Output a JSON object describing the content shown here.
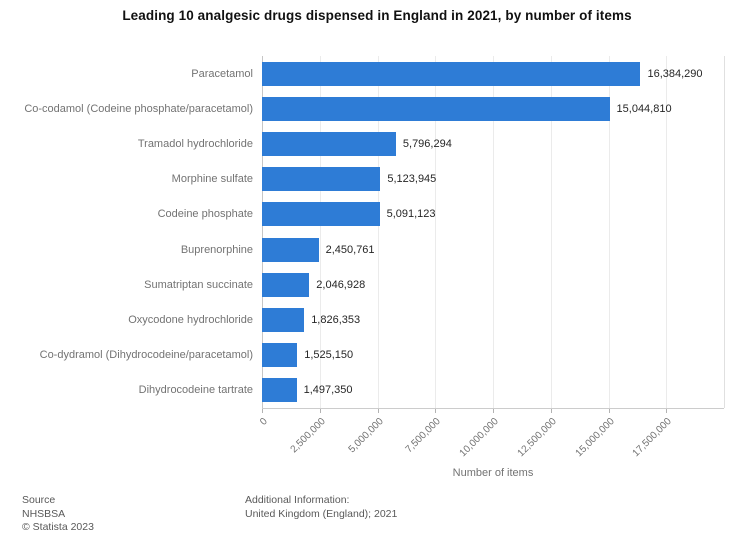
{
  "chart_data": {
    "type": "bar",
    "orientation": "horizontal",
    "title": "Leading 10 analgesic drugs dispensed in England in 2021, by number of items",
    "categories": [
      "Paracetamol",
      "Co-codamol (Codeine phosphate/paracetamol)",
      "Tramadol hydrochloride",
      "Morphine sulfate",
      "Codeine phosphate",
      "Buprenorphine",
      "Sumatriptan succinate",
      "Oxycodone hydrochloride",
      "Co-dydramol (Dihydrocodeine/paracetamol)",
      "Dihydrocodeine tartrate"
    ],
    "values": [
      16384290,
      15044810,
      5796294,
      5123945,
      5091123,
      2450761,
      2046928,
      1826353,
      1525150,
      1497350
    ],
    "value_labels": [
      "16,384,290",
      "15,044,810",
      "5,796,294",
      "5,123,945",
      "5,091,123",
      "2,450,761",
      "2,046,928",
      "1,826,353",
      "1,525,150",
      "1,497,350"
    ],
    "xlabel": "Number of items",
    "xlim": [
      0,
      20000000
    ],
    "ticks": [
      0,
      2500000,
      5000000,
      7500000,
      10000000,
      12500000,
      15000000,
      17500000
    ],
    "tick_labels": [
      "0",
      "2,500,000",
      "5,000,000",
      "7,500,000",
      "10,000,000",
      "12,500,000",
      "15,000,000",
      "17,500,000"
    ],
    "bar_color": "#2e7cd6",
    "grid": "vertical-light",
    "legend": false
  },
  "footer": {
    "source_label": "Source",
    "source_name": "NHSBSA",
    "copyright": "© Statista 2023",
    "additional_label": "Additional Information:",
    "additional_text": "United Kingdom (England); 2021"
  }
}
